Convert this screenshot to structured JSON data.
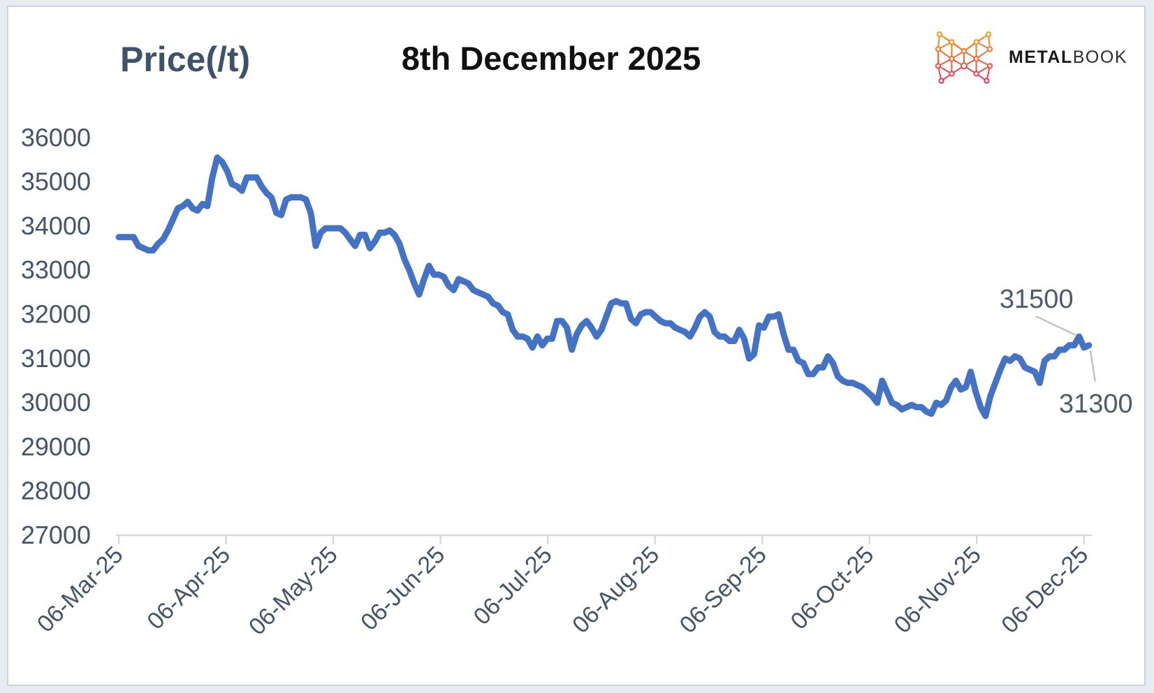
{
  "window": {
    "background": "#e8ecf2",
    "panel_background": "#ffffff",
    "panel_border": "#ccd3dc"
  },
  "header": {
    "y_axis_title": "Price(/t)",
    "chart_title": "8th December 2025"
  },
  "logo": {
    "brand_bold": "METAL",
    "brand_light": "BOOK",
    "gradient_top": "#F6A21E",
    "gradient_mid": "#F0693A",
    "gradient_bottom": "#E72D67"
  },
  "chart_data": {
    "type": "line",
    "title": "8th December 2025",
    "ylabel": "Price(/t)",
    "xlabel": "",
    "x_tick_labels": [
      "06-Mar-25",
      "06-Apr-25",
      "06-May-25",
      "06-Jun-25",
      "06-Jul-25",
      "06-Aug-25",
      "06-Sep-25",
      "06-Oct-25",
      "06-Nov-25",
      "06-Dec-25"
    ],
    "ylim": [
      27000,
      36000
    ],
    "y_tick_step": 1000,
    "grid": false,
    "legend": false,
    "line_color": "#4472C4",
    "axis_color": "#D9D9D9",
    "tick_label_color": "#44546A",
    "annotation_color": "#4C5A6E",
    "leader_line_color": "#C3C3C3",
    "series": [
      {
        "name": "Price (/t)",
        "values": [
          33750,
          33750,
          33750,
          33750,
          33550,
          33500,
          33450,
          33450,
          33600,
          33700,
          33900,
          34150,
          34400,
          34450,
          34550,
          34400,
          34350,
          34500,
          34450,
          35100,
          35550,
          35450,
          35250,
          34950,
          34900,
          34800,
          35100,
          35100,
          35100,
          34900,
          34750,
          34650,
          34300,
          34250,
          34600,
          34650,
          34650,
          34650,
          34600,
          34300,
          33550,
          33850,
          33950,
          33950,
          33950,
          33950,
          33850,
          33700,
          33550,
          33800,
          33800,
          33500,
          33650,
          33850,
          33850,
          33900,
          33800,
          33600,
          33250,
          33000,
          32700,
          32450,
          32800,
          33100,
          32900,
          32900,
          32850,
          32650,
          32550,
          32800,
          32750,
          32700,
          32550,
          32500,
          32450,
          32400,
          32250,
          32200,
          32050,
          32000,
          31650,
          31500,
          31500,
          31450,
          31250,
          31500,
          31300,
          31450,
          31450,
          31850,
          31850,
          31700,
          31200,
          31550,
          31750,
          31850,
          31700,
          31500,
          31650,
          31950,
          32250,
          32300,
          32250,
          32250,
          31900,
          31800,
          32000,
          32050,
          32050,
          31950,
          31850,
          31800,
          31800,
          31700,
          31650,
          31600,
          31500,
          31700,
          31950,
          32050,
          31950,
          31600,
          31500,
          31500,
          31400,
          31400,
          31650,
          31450,
          31000,
          31100,
          31750,
          31700,
          31950,
          31950,
          32000,
          31550,
          31200,
          31200,
          30950,
          30900,
          30650,
          30650,
          30800,
          30800,
          31050,
          30900,
          30600,
          30500,
          30450,
          30450,
          30400,
          30350,
          30250,
          30150,
          30000,
          30500,
          30250,
          30000,
          29950,
          29850,
          29900,
          29950,
          29900,
          29900,
          29800,
          29750,
          30000,
          29950,
          30050,
          30350,
          30500,
          30300,
          30350,
          30700,
          30250,
          29900,
          29700,
          30150,
          30450,
          30750,
          31000,
          30950,
          31050,
          31000,
          30800,
          30750,
          30700,
          30450,
          30950,
          31050,
          31050,
          31200,
          31200,
          31300,
          31300,
          31500,
          31250,
          31300
        ]
      }
    ],
    "annotations": [
      {
        "label": "31500",
        "value": 31500,
        "day_index": 195
      },
      {
        "label": "31300",
        "value": 31300,
        "day_index": 197
      }
    ]
  }
}
